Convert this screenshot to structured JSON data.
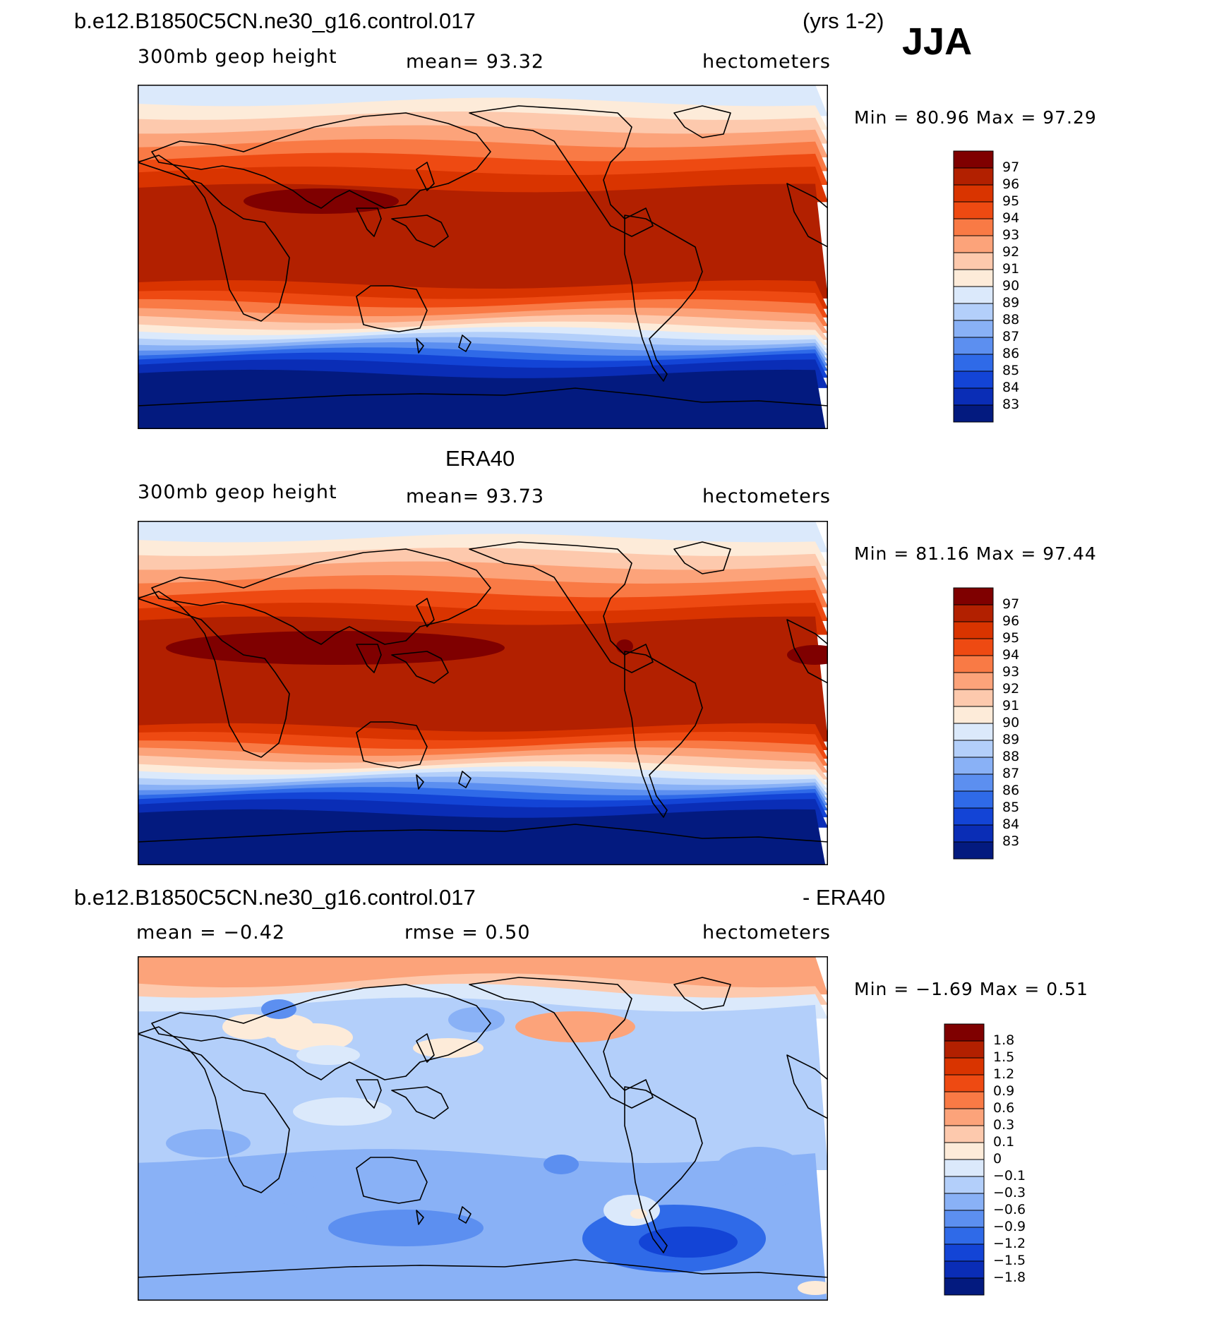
{
  "season": "JJA",
  "panels": [
    {
      "id": "model",
      "title_left": "b.e12.B1850C5CN.ne30_g16.control.017",
      "title_right": "(yrs 1-2)",
      "variable": "300mb geop height",
      "mean_text": "mean=   93.32",
      "units": "hectometers",
      "minmax": "Min =   80.96  Max =   97.29",
      "colorbar": {
        "labels": [
          "97",
          "96",
          "95",
          "94",
          "93",
          "92",
          "91",
          "90",
          "89",
          "88",
          "87",
          "86",
          "85",
          "84",
          "83"
        ],
        "colors": [
          "#7f0000",
          "#b22000",
          "#d93400",
          "#ee4a12",
          "#f97a45",
          "#fca37a",
          "#fdc9ad",
          "#fdebd9",
          "#dbe9fb",
          "#b3cffa",
          "#89b1f6",
          "#5c8ff0",
          "#2f6ae8",
          "#1344d6",
          "#0a2db6",
          "#031a7f"
        ]
      },
      "map": {
        "bands": [
          [
            0.0,
            "#dbe9fb"
          ],
          [
            0.05,
            "#fdebd9"
          ],
          [
            0.09,
            "#fdc9ad"
          ],
          [
            0.13,
            "#fca37a"
          ],
          [
            0.17,
            "#f97a45"
          ],
          [
            0.21,
            "#ee4a12"
          ],
          [
            0.25,
            "#d93400"
          ],
          [
            0.3,
            "#b22000"
          ],
          [
            0.58,
            "#d93400"
          ],
          [
            0.61,
            "#ee4a12"
          ],
          [
            0.635,
            "#f97a45"
          ],
          [
            0.66,
            "#fca37a"
          ],
          [
            0.68,
            "#fdc9ad"
          ],
          [
            0.7,
            "#fdebd9"
          ],
          [
            0.715,
            "#dbe9fb"
          ],
          [
            0.73,
            "#b3cffa"
          ],
          [
            0.745,
            "#89b1f6"
          ],
          [
            0.76,
            "#5c8ff0"
          ],
          [
            0.775,
            "#2f6ae8"
          ],
          [
            0.79,
            "#1344d6"
          ],
          [
            0.81,
            "#0a2db6"
          ],
          [
            0.84,
            "#031a7f"
          ]
        ]
      }
    },
    {
      "id": "obs",
      "title_center": "ERA40",
      "variable": "300mb geop height",
      "mean_text": "mean=   93.73",
      "units": "hectometers",
      "minmax": "Min =   81.16  Max =   97.44",
      "colorbar": {
        "labels": [
          "97",
          "96",
          "95",
          "94",
          "93",
          "92",
          "91",
          "90",
          "89",
          "88",
          "87",
          "86",
          "85",
          "84",
          "83"
        ],
        "colors": [
          "#7f0000",
          "#b22000",
          "#d93400",
          "#ee4a12",
          "#f97a45",
          "#fca37a",
          "#fdc9ad",
          "#fdebd9",
          "#dbe9fb",
          "#b3cffa",
          "#89b1f6",
          "#5c8ff0",
          "#2f6ae8",
          "#1344d6",
          "#0a2db6",
          "#031a7f"
        ]
      },
      "map": {
        "bands": [
          [
            0.0,
            "#dbe9fb"
          ],
          [
            0.05,
            "#fdebd9"
          ],
          [
            0.09,
            "#fdc9ad"
          ],
          [
            0.13,
            "#fca37a"
          ],
          [
            0.17,
            "#f97a45"
          ],
          [
            0.21,
            "#ee4a12"
          ],
          [
            0.25,
            "#d93400"
          ],
          [
            0.29,
            "#b22000"
          ],
          [
            0.6,
            "#d93400"
          ],
          [
            0.625,
            "#ee4a12"
          ],
          [
            0.65,
            "#f97a45"
          ],
          [
            0.67,
            "#fca37a"
          ],
          [
            0.69,
            "#fdc9ad"
          ],
          [
            0.71,
            "#fdebd9"
          ],
          [
            0.725,
            "#dbe9fb"
          ],
          [
            0.74,
            "#b3cffa"
          ],
          [
            0.755,
            "#89b1f6"
          ],
          [
            0.77,
            "#5c8ff0"
          ],
          [
            0.785,
            "#2f6ae8"
          ],
          [
            0.8,
            "#1344d6"
          ],
          [
            0.82,
            "#0a2db6"
          ],
          [
            0.85,
            "#031a7f"
          ]
        ]
      }
    },
    {
      "id": "diff",
      "title_left": "b.e12.B1850C5CN.ne30_g16.control.017",
      "title_right": "- ERA40",
      "mean_text": "mean =   −0.42",
      "rmse_text": "rmse =     0.50",
      "units": "hectometers",
      "minmax": "Min =   −1.69  Max =     0.51",
      "colorbar": {
        "labels": [
          "1.8",
          "1.5",
          "1.2",
          "0.9",
          "0.6",
          "0.3",
          "0.1",
          "0",
          "−0.1",
          "−0.3",
          "−0.6",
          "−0.9",
          "−1.2",
          "−1.5",
          "−1.8"
        ],
        "colors": [
          "#7f0000",
          "#b22000",
          "#d93400",
          "#ee4a12",
          "#f97a45",
          "#fca37a",
          "#fdc9ad",
          "#fdebd9",
          "#dbe9fb",
          "#b3cffa",
          "#89b1f6",
          "#5c8ff0",
          "#2f6ae8",
          "#1344d6",
          "#0a2db6",
          "#031a7f"
        ]
      },
      "map": {
        "bands": [
          [
            0.0,
            "#fca37a"
          ],
          [
            0.07,
            "#fdc9ad"
          ],
          [
            0.1,
            "#dbe9fb"
          ],
          [
            0.14,
            "#b3cffa"
          ],
          [
            0.58,
            "#89b1f6"
          ]
        ]
      }
    }
  ]
}
